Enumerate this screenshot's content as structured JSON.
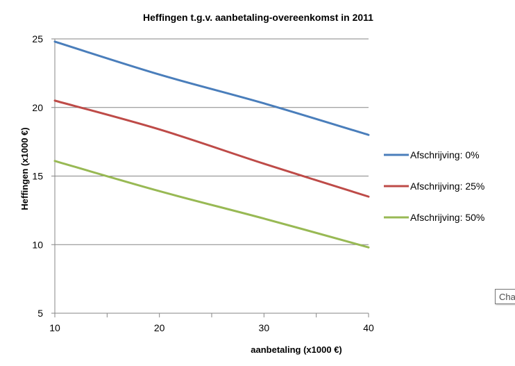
{
  "chart_data": {
    "type": "line",
    "title": "Heffingen t.g.v. aanbetaling-overeenkomst in 2011",
    "xlabel": "aanbetaling (x1000 €)",
    "ylabel": "Heffingen (x1000 €)",
    "xlim": [
      10,
      40
    ],
    "ylim": [
      5,
      25
    ],
    "x_ticks": [
      "10",
      "20",
      "30",
      "40"
    ],
    "y_ticks": [
      "5",
      "10",
      "15",
      "20",
      "25"
    ],
    "grid": "horizontal",
    "legend_position": "right",
    "series": [
      {
        "name": "Afschrijving: 0%",
        "color": "#4a7ebb",
        "x": [
          10,
          20,
          30,
          40
        ],
        "y": [
          24.8,
          22.4,
          20.3,
          18.0
        ]
      },
      {
        "name": "Afschrijving: 25%",
        "color": "#be4b48",
        "x": [
          10,
          20,
          30,
          40
        ],
        "y": [
          20.5,
          18.4,
          15.9,
          13.5
        ]
      },
      {
        "name": "Afschrijving: 50%",
        "color": "#98b954",
        "x": [
          10,
          20,
          30,
          40
        ],
        "y": [
          16.1,
          13.9,
          11.9,
          9.8
        ]
      }
    ]
  },
  "tooltip": {
    "text": "Cha"
  }
}
